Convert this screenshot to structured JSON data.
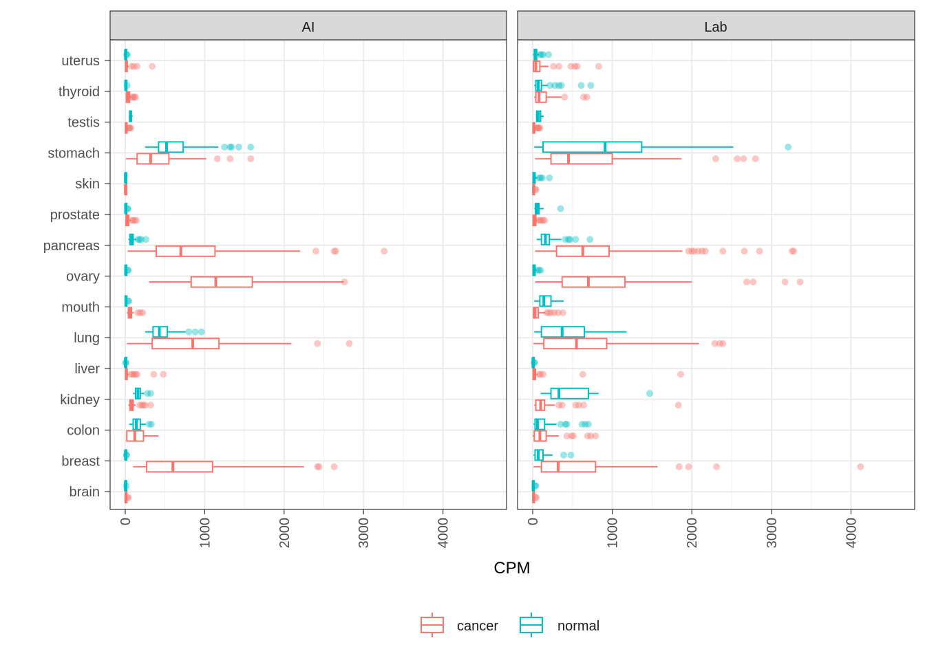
{
  "chart_data": {
    "type": "boxplot",
    "orientation": "horizontal",
    "x_label": "CPM",
    "xlim": [
      -190,
      4800
    ],
    "x_ticks": [
      0,
      1000,
      2000,
      3000,
      4000
    ],
    "x_tick_labels": [
      "0",
      "1000",
      "2000",
      "3000",
      "4000"
    ],
    "categories": [
      "uterus",
      "thyroid",
      "testis",
      "stomach",
      "skin",
      "prostate",
      "pancreas",
      "ovary",
      "mouth",
      "lung",
      "liver",
      "kidney",
      "colon",
      "breast",
      "brain"
    ],
    "legend": {
      "position": "bottom",
      "items": [
        {
          "key": "cancer",
          "label": "cancer",
          "color": "#F8766D"
        },
        {
          "key": "normal",
          "label": "normal",
          "color": "#00BFC4"
        }
      ]
    },
    "facets": [
      {
        "label": "AI",
        "data": {
          "uterus": {
            "normal": {
              "min": 0,
              "q1": 1,
              "median": 3,
              "q3": 6,
              "max": 12,
              "outliers": [
                18,
                25
              ]
            },
            "cancer": {
              "min": 0,
              "q1": 5,
              "median": 12,
              "q3": 25,
              "max": 45,
              "outliers": [
                80,
                110,
                150,
                340
              ]
            }
          },
          "thyroid": {
            "normal": {
              "min": 0,
              "q1": 2,
              "median": 5,
              "q3": 10,
              "max": 18,
              "outliers": [
                25
              ]
            },
            "cancer": {
              "min": 5,
              "q1": 15,
              "median": 30,
              "q3": 55,
              "max": 80,
              "outliers": [
                90,
                100,
                115,
                130
              ]
            }
          },
          "testis": {
            "normal": {
              "min": 45,
              "q1": 55,
              "median": 68,
              "q3": 78,
              "max": 95,
              "outliers": []
            },
            "cancer": {
              "min": 0,
              "q1": 5,
              "median": 12,
              "q3": 22,
              "max": 35,
              "outliers": [
                40,
                50,
                60,
                70
              ]
            }
          },
          "stomach": {
            "normal": {
              "min": 250,
              "q1": 420,
              "median": 520,
              "q3": 730,
              "max": 1170,
              "outliers": [
                1250,
                1320,
                1340,
                1430,
                1580
              ]
            },
            "cancer": {
              "min": 10,
              "q1": 150,
              "median": 320,
              "q3": 550,
              "max": 1020,
              "outliers": [
                1160,
                1320,
                1580
              ]
            }
          },
          "skin": {
            "normal": {
              "min": 0,
              "q1": 1,
              "median": 2,
              "q3": 3,
              "max": 5,
              "outliers": []
            },
            "cancer": {
              "min": 0,
              "q1": 1,
              "median": 2,
              "q3": 3,
              "max": 5,
              "outliers": []
            }
          },
          "prostate": {
            "normal": {
              "min": 0,
              "q1": 2,
              "median": 5,
              "q3": 12,
              "max": 18,
              "outliers": [
                28,
                35
              ]
            },
            "cancer": {
              "min": 0,
              "q1": 10,
              "median": 25,
              "q3": 45,
              "max": 70,
              "outliers": [
                85,
                100,
                120,
                140
              ]
            }
          },
          "pancreas": {
            "normal": {
              "min": 40,
              "q1": 60,
              "median": 80,
              "q3": 100,
              "max": 140,
              "outliers": [
                160,
                180,
                200,
                260
              ]
            },
            "cancer": {
              "min": 30,
              "q1": 390,
              "median": 700,
              "q3": 1130,
              "max": 2200,
              "outliers": [
                2400,
                2630,
                2650,
                3260
              ]
            }
          },
          "ovary": {
            "normal": {
              "min": 0,
              "q1": 2,
              "median": 5,
              "q3": 12,
              "max": 20,
              "outliers": [
                30,
                40
              ]
            },
            "cancer": {
              "min": 300,
              "q1": 830,
              "median": 1140,
              "q3": 1600,
              "max": 2750,
              "outliers": [
                2760
              ]
            }
          },
          "mouth": {
            "normal": {
              "min": 0,
              "q1": 3,
              "median": 8,
              "q3": 15,
              "max": 25,
              "outliers": [
                35,
                45
              ]
            },
            "cancer": {
              "min": 20,
              "q1": 40,
              "median": 60,
              "q3": 80,
              "max": 110,
              "outliers": [
                160,
                190,
                220
              ]
            }
          },
          "lung": {
            "normal": {
              "min": 250,
              "q1": 350,
              "median": 430,
              "q3": 530,
              "max": 760,
              "outliers": [
                800,
                880,
                960
              ]
            },
            "cancer": {
              "min": 20,
              "q1": 340,
              "median": 850,
              "q3": 1180,
              "max": 2090,
              "outliers": [
                2420,
                2820
              ]
            }
          },
          "liver": {
            "normal": {
              "min": 0,
              "q1": 1,
              "median": 2,
              "q3": 3,
              "max": 5,
              "outliers": [
                7,
                9
              ]
            },
            "cancer": {
              "min": 0,
              "q1": 5,
              "median": 12,
              "q3": 25,
              "max": 45,
              "outliers": [
                70,
                90,
                110,
                130,
                150,
                360,
                480
              ]
            }
          },
          "kidney": {
            "normal": {
              "min": 100,
              "q1": 130,
              "median": 160,
              "q3": 190,
              "max": 240,
              "outliers": [
                280,
                320
              ]
            },
            "cancer": {
              "min": 40,
              "q1": 60,
              "median": 80,
              "q3": 100,
              "max": 130,
              "outliers": [
                180,
                210,
                230,
                250,
                320
              ]
            }
          },
          "colon": {
            "normal": {
              "min": 50,
              "q1": 100,
              "median": 140,
              "q3": 190,
              "max": 260,
              "outliers": [
                300,
                330
              ]
            },
            "cancer": {
              "min": 10,
              "q1": 20,
              "median": 120,
              "q3": 230,
              "max": 420,
              "outliers": []
            }
          },
          "breast": {
            "normal": {
              "min": 0,
              "q1": 1,
              "median": 3,
              "q3": 6,
              "max": 12,
              "outliers": [
                15,
                18
              ]
            },
            "cancer": {
              "min": 100,
              "q1": 270,
              "median": 600,
              "q3": 1100,
              "max": 2250,
              "outliers": [
                2420,
                2440,
                2630
              ]
            }
          },
          "brain": {
            "normal": {
              "min": 0,
              "q1": 1,
              "median": 2,
              "q3": 5,
              "max": 10,
              "outliers": [
                14
              ]
            },
            "cancer": {
              "min": 0,
              "q1": 3,
              "median": 8,
              "q3": 15,
              "max": 25,
              "outliers": [
                30,
                40
              ]
            }
          }
        }
      },
      {
        "label": "Lab",
        "data": {
          "uterus": {
            "normal": {
              "min": 5,
              "q1": 20,
              "median": 35,
              "q3": 50,
              "max": 80,
              "outliers": [
                90,
                110,
                130,
                200
              ]
            },
            "cancer": {
              "min": 0,
              "q1": 10,
              "median": 40,
              "q3": 90,
              "max": 200,
              "outliers": [
                260,
                330,
                480,
                530,
                560,
                830
              ]
            }
          },
          "thyroid": {
            "normal": {
              "min": 20,
              "q1": 40,
              "median": 70,
              "q3": 110,
              "max": 190,
              "outliers": [
                220,
                280,
                330,
                360,
                610,
                730
              ]
            },
            "cancer": {
              "min": 20,
              "q1": 40,
              "median": 80,
              "q3": 170,
              "max": 360,
              "outliers": [
                400,
                640,
                680
              ]
            }
          },
          "testis": {
            "normal": {
              "min": 40,
              "q1": 50,
              "median": 70,
              "q3": 100,
              "max": 140,
              "outliers": []
            },
            "cancer": {
              "min": 0,
              "q1": 5,
              "median": 12,
              "q3": 25,
              "max": 40,
              "outliers": [
                50,
                60,
                70,
                80,
                90
              ]
            }
          },
          "stomach": {
            "normal": {
              "min": 20,
              "q1": 130,
              "median": 910,
              "q3": 1370,
              "max": 2520,
              "outliers": [
                3210
              ]
            },
            "cancer": {
              "min": 30,
              "q1": 230,
              "median": 450,
              "q3": 1000,
              "max": 1870,
              "outliers": [
                2300,
                2570,
                2650,
                2800
              ]
            }
          },
          "skin": {
            "normal": {
              "min": 0,
              "q1": 5,
              "median": 15,
              "q3": 30,
              "max": 60,
              "outliers": [
                80,
                100,
                120,
                210
              ]
            },
            "cancer": {
              "min": 0,
              "q1": 5,
              "median": 10,
              "q3": 20,
              "max": 30,
              "outliers": [
                35,
                40
              ]
            }
          },
          "prostate": {
            "normal": {
              "min": 20,
              "q1": 35,
              "median": 60,
              "q3": 80,
              "max": 140,
              "outliers": [
                350
              ]
            },
            "cancer": {
              "min": 0,
              "q1": 5,
              "median": 20,
              "q3": 40,
              "max": 60,
              "outliers": [
                70,
                90,
                110,
                130,
                150
              ]
            }
          },
          "pancreas": {
            "normal": {
              "min": 50,
              "q1": 110,
              "median": 160,
              "q3": 210,
              "max": 360,
              "outliers": [
                410,
                450,
                470,
                540,
                720
              ]
            },
            "cancer": {
              "min": 30,
              "q1": 300,
              "median": 630,
              "q3": 960,
              "max": 1880,
              "outliers": [
                1960,
                2000,
                2030,
                2080,
                2130,
                2170,
                2390,
                2660,
                2850,
                3260,
                3280
              ]
            }
          },
          "ovary": {
            "normal": {
              "min": 0,
              "q1": 5,
              "median": 15,
              "q3": 30,
              "max": 50,
              "outliers": [
                60,
                80,
                100
              ]
            },
            "cancer": {
              "min": 30,
              "q1": 370,
              "median": 700,
              "q3": 1160,
              "max": 2000,
              "outliers": [
                2690,
                2770,
                3170,
                3360
              ]
            }
          },
          "mouth": {
            "normal": {
              "min": 20,
              "q1": 90,
              "median": 140,
              "q3": 230,
              "max": 390,
              "outliers": []
            },
            "cancer": {
              "min": 0,
              "q1": 10,
              "median": 30,
              "q3": 70,
              "max": 160,
              "outliers": [
                180,
                200,
                230,
                270,
                320,
                380
              ]
            }
          },
          "lung": {
            "normal": {
              "min": 20,
              "q1": 110,
              "median": 370,
              "q3": 650,
              "max": 1180,
              "outliers": []
            },
            "cancer": {
              "min": 10,
              "q1": 140,
              "median": 550,
              "q3": 930,
              "max": 2090,
              "outliers": [
                2290,
                2350,
                2390
              ]
            }
          },
          "liver": {
            "normal": {
              "min": 0,
              "q1": 1,
              "median": 3,
              "q3": 6,
              "max": 12,
              "outliers": [
                18,
                25
              ]
            },
            "cancer": {
              "min": 0,
              "q1": 5,
              "median": 15,
              "q3": 35,
              "max": 60,
              "outliers": [
                80,
                100,
                130,
                630,
                1860
              ]
            }
          },
          "kidney": {
            "normal": {
              "min": 100,
              "q1": 230,
              "median": 330,
              "q3": 700,
              "max": 830,
              "outliers": [
                1470
              ]
            },
            "cancer": {
              "min": 20,
              "q1": 40,
              "median": 100,
              "q3": 150,
              "max": 280,
              "outliers": [
                330,
                370,
                540,
                580,
                640,
                1830
              ]
            }
          },
          "colon": {
            "normal": {
              "min": 10,
              "q1": 30,
              "median": 60,
              "q3": 150,
              "max": 300,
              "outliers": [
                350,
                410,
                430,
                620,
                660,
                700
              ]
            },
            "cancer": {
              "min": 0,
              "q1": 20,
              "median": 90,
              "q3": 170,
              "max": 330,
              "outliers": [
                430,
                490,
                510,
                690,
                730,
                790
              ]
            }
          },
          "breast": {
            "normal": {
              "min": 10,
              "q1": 30,
              "median": 70,
              "q3": 130,
              "max": 250,
              "outliers": [
                390,
                480
              ]
            },
            "cancer": {
              "min": 10,
              "q1": 110,
              "median": 320,
              "q3": 790,
              "max": 1570,
              "outliers": [
                1840,
                1960,
                2310,
                4120
              ]
            }
          },
          "brain": {
            "normal": {
              "min": 0,
              "q1": 2,
              "median": 5,
              "q3": 10,
              "max": 20,
              "outliers": [
                30,
                40
              ]
            },
            "cancer": {
              "min": 0,
              "q1": 5,
              "median": 10,
              "q3": 20,
              "max": 30,
              "outliers": [
                35,
                45
              ]
            }
          }
        }
      }
    ]
  }
}
